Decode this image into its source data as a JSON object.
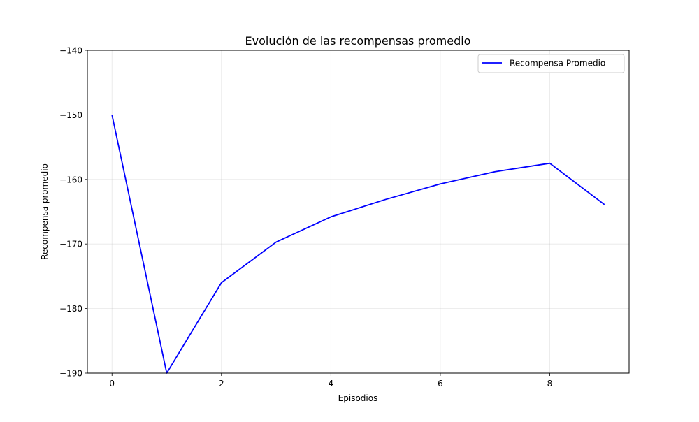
{
  "chart_data": {
    "type": "line",
    "title": "Evolución de las recompensas promedio",
    "xlabel": "Episodios",
    "ylabel": "Recompensa promedio",
    "xlim": [
      -0.45,
      9.45
    ],
    "ylim": [
      -190,
      -140
    ],
    "xticks": [
      0,
      2,
      4,
      6,
      8
    ],
    "xtick_labels": [
      "0",
      "2",
      "4",
      "6",
      "8"
    ],
    "yticks": [
      -190,
      -180,
      -170,
      -160,
      -150,
      -140
    ],
    "ytick_labels": [
      "−190",
      "−180",
      "−170",
      "−160",
      "−150",
      "−140"
    ],
    "grid": true,
    "legend_position": "top-right",
    "series": [
      {
        "name": "Recompensa Promedio",
        "color": "#0000ff",
        "x": [
          0,
          1,
          2,
          3,
          4,
          5,
          6,
          7,
          8,
          9
        ],
        "y": [
          -150,
          -190,
          -176,
          -169.7,
          -165.8,
          -163.1,
          -160.7,
          -158.8,
          -157.5,
          -163.9
        ]
      }
    ]
  }
}
